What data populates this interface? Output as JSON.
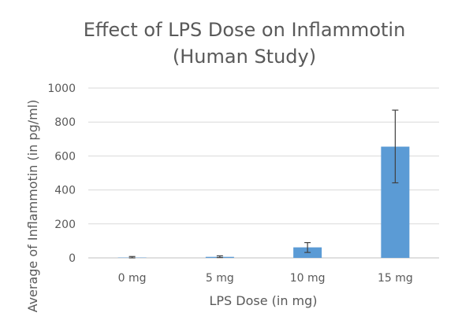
{
  "chart_data": {
    "type": "bar",
    "title": "Effect of LPS Dose on Inflammotin (Human Study)",
    "title_lines": [
      "Effect of LPS Dose on Inflammotin",
      "(Human Study)"
    ],
    "xlabel": "LPS Dose (in mg)",
    "ylabel": "Average of Inflammotin (in pg/ml)",
    "categories": [
      "0 mg",
      "5 mg",
      "10 mg",
      "15 mg"
    ],
    "values": [
      2,
      6,
      62,
      655
    ],
    "error_bars": {
      "upper": [
        8,
        12,
        90,
        870
      ],
      "lower": [
        0,
        2,
        32,
        442
      ]
    },
    "ylim": [
      0,
      1000
    ],
    "yticks": [
      0,
      200,
      400,
      600,
      800,
      1000
    ],
    "ytick_labels": [
      "0",
      "200",
      "400",
      "600",
      "800",
      "1000"
    ],
    "grid": true,
    "legend": false,
    "colors": {
      "bar": "#5B9BD5",
      "error_bar": "#404040",
      "grid": "#D9D9D9",
      "axis_line": "#BFBFBF",
      "text": "#595959"
    }
  }
}
